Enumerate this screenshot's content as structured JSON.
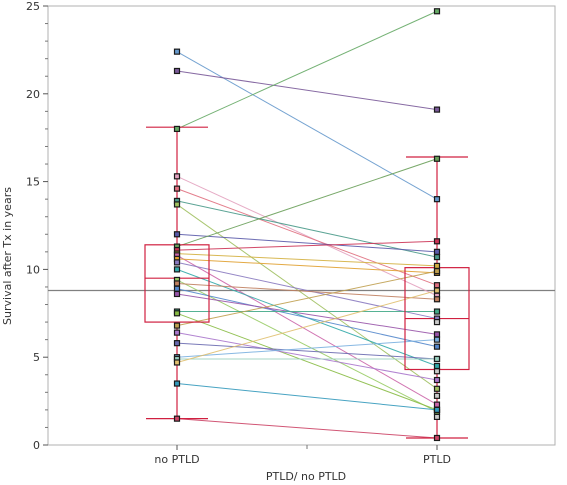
{
  "chart_data": {
    "type": "scatter",
    "title": "",
    "xlabel": "PTLD/ no PTLD",
    "ylabel": "Survival after Tx in years",
    "categories": [
      "no PTLD",
      "PTLD"
    ],
    "ylim": [
      0,
      25
    ],
    "yticks": [
      0,
      5,
      10,
      15,
      20,
      25
    ],
    "grid": false,
    "mean_line": 8.8,
    "boxplots": [
      {
        "category": "no PTLD",
        "whisker_low": 1.5,
        "q1": 7.0,
        "median": 9.5,
        "q3": 11.4,
        "whisker_high": 18.1
      },
      {
        "category": "PTLD",
        "whisker_low": 0.4,
        "q1": 4.3,
        "median": 7.2,
        "q3": 10.1,
        "whisker_high": 16.4
      }
    ],
    "pairs": [
      {
        "no_ptld": 22.4,
        "ptld": 14.0,
        "color": "#6699cc"
      },
      {
        "no_ptld": 21.3,
        "ptld": 19.1,
        "color": "#7a5a99"
      },
      {
        "no_ptld": 18.0,
        "ptld": 24.7,
        "color": "#66aa66"
      },
      {
        "no_ptld": 15.3,
        "ptld": 8.5,
        "color": "#e3a3c0"
      },
      {
        "no_ptld": 14.6,
        "ptld": 9.1,
        "color": "#e07080"
      },
      {
        "no_ptld": 13.9,
        "ptld": 10.7,
        "color": "#4a9a8a"
      },
      {
        "no_ptld": 13.7,
        "ptld": 3.2,
        "color": "#a0c060"
      },
      {
        "no_ptld": 12.0,
        "ptld": 11.0,
        "color": "#5a5aaa"
      },
      {
        "no_ptld": 11.3,
        "ptld": 16.3,
        "color": "#6aa05a"
      },
      {
        "no_ptld": 11.1,
        "ptld": 11.6,
        "color": "#cc3355"
      },
      {
        "no_ptld": 10.9,
        "ptld": 10.2,
        "color": "#d4b040"
      },
      {
        "no_ptld": 10.8,
        "ptld": 2.3,
        "color": "#cc66aa"
      },
      {
        "no_ptld": 10.6,
        "ptld": 9.8,
        "color": "#e0a030"
      },
      {
        "no_ptld": 10.4,
        "ptld": 7.2,
        "color": "#8a7ac0"
      },
      {
        "no_ptld": 10.0,
        "ptld": 4.5,
        "color": "#33aaaa"
      },
      {
        "no_ptld": 9.4,
        "ptld": 1.9,
        "color": "#99cc66"
      },
      {
        "no_ptld": 9.2,
        "ptld": 8.3,
        "color": "#c08060"
      },
      {
        "no_ptld": 8.9,
        "ptld": 5.6,
        "color": "#5588cc"
      },
      {
        "no_ptld": 8.6,
        "ptld": 6.3,
        "color": "#9955aa"
      },
      {
        "no_ptld": 7.6,
        "ptld": 7.6,
        "color": "#44aa88"
      },
      {
        "no_ptld": 7.5,
        "ptld": 2.0,
        "color": "#88bb44"
      },
      {
        "no_ptld": 6.8,
        "ptld": 9.9,
        "color": "#c0a050"
      },
      {
        "no_ptld": 6.4,
        "ptld": 3.7,
        "color": "#aa77cc"
      },
      {
        "no_ptld": 5.8,
        "ptld": 4.9,
        "color": "#6a6ab0"
      },
      {
        "no_ptld": 5.0,
        "ptld": 6.0,
        "color": "#7ab0e0"
      },
      {
        "no_ptld": 4.9,
        "ptld": 4.9,
        "color": "#9ad0c0"
      },
      {
        "no_ptld": 4.7,
        "ptld": 8.8,
        "color": "#e0c070"
      },
      {
        "no_ptld": 3.5,
        "ptld": 2.0,
        "color": "#3399bb"
      },
      {
        "no_ptld": 1.5,
        "ptld": 0.4,
        "color": "#cc4466"
      }
    ],
    "ptld_only": [
      2.8,
      1.6,
      7.0,
      4.2
    ]
  }
}
